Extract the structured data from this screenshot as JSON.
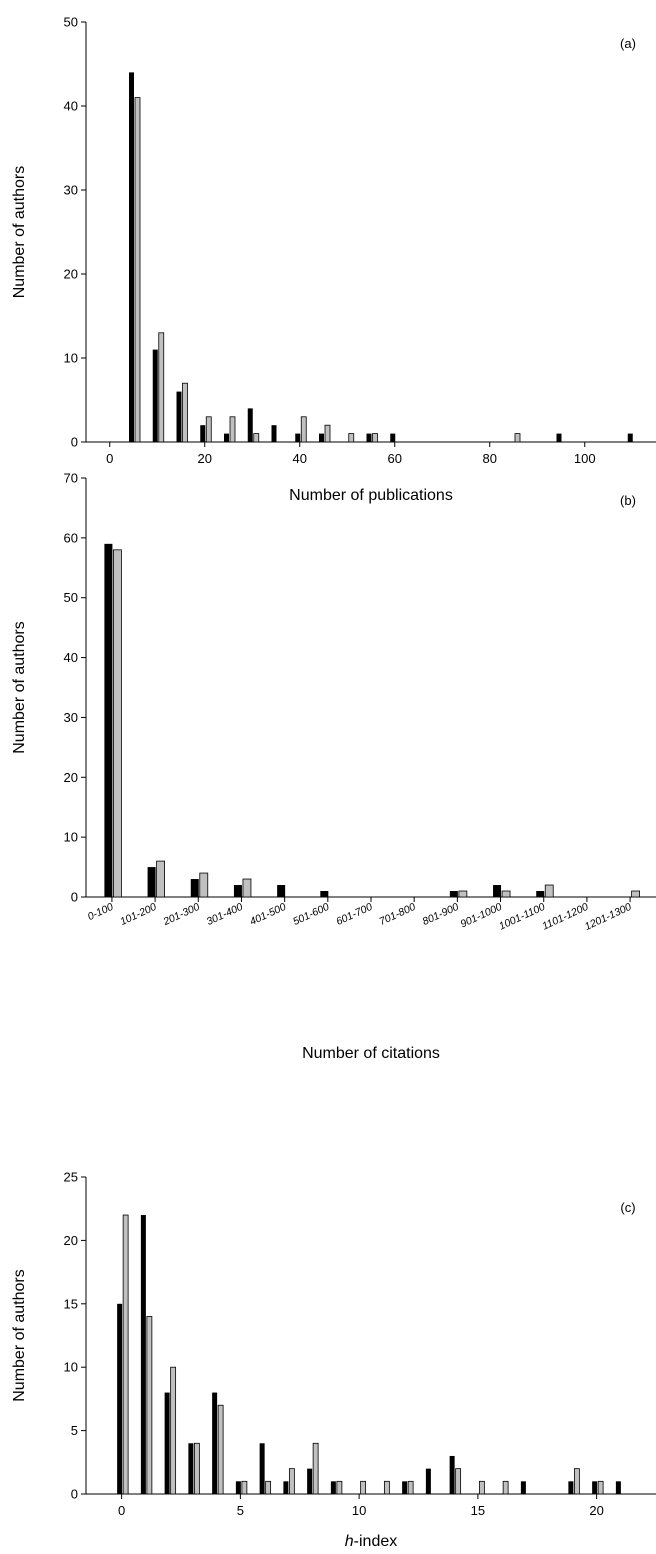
{
  "chart_data": [
    {
      "type": "bar",
      "panel_label": "(a)",
      "xlabel": "Number of publications",
      "ylabel": "Number of authors",
      "xlim": [
        -5,
        115
      ],
      "ylim": [
        0,
        50
      ],
      "xticks": [
        0,
        20,
        40,
        60,
        80,
        100
      ],
      "yticks": [
        0,
        10,
        20,
        30,
        40,
        50
      ],
      "grid": false,
      "x": [
        5,
        10,
        15,
        20,
        25,
        30,
        35,
        40,
        45,
        50,
        55,
        60,
        85,
        95,
        110
      ],
      "series": [
        {
          "color": "#000000",
          "values": [
            44,
            11,
            6,
            2,
            1,
            4,
            2,
            1,
            1,
            0,
            1,
            1,
            0,
            1,
            1
          ]
        },
        {
          "color": "#c0c0c0",
          "values": [
            41,
            13,
            7,
            3,
            3,
            1,
            0,
            3,
            2,
            1,
            1,
            0,
            1,
            0,
            0
          ]
        }
      ]
    },
    {
      "type": "bar",
      "panel_label": "(b)",
      "xlabel": "Number of citations",
      "ylabel": "Number of authors",
      "ylim": [
        0,
        70
      ],
      "yticks": [
        0,
        10,
        20,
        30,
        40,
        50,
        60,
        70
      ],
      "grid": false,
      "categories": [
        "0-100",
        "101-200",
        "201-300",
        "301-400",
        "401-500",
        "501-600",
        "601-700",
        "701-800",
        "801-900",
        "901-1000",
        "1001-1100",
        "1101-1200",
        "1201-1300"
      ],
      "series": [
        {
          "color": "#000000",
          "values": [
            59,
            5,
            3,
            2,
            2,
            1,
            0,
            0,
            1,
            2,
            1,
            0,
            0
          ]
        },
        {
          "color": "#c0c0c0",
          "values": [
            58,
            6,
            4,
            3,
            0,
            0,
            0,
            0,
            1,
            1,
            2,
            0,
            1
          ]
        }
      ]
    },
    {
      "type": "bar",
      "panel_label": "(c)",
      "xlabel_italic": "h",
      "xlabel": "-index",
      "ylabel": "Number of authors",
      "xlim": [
        -1.5,
        22.5
      ],
      "ylim": [
        0,
        25
      ],
      "xticks": [
        0,
        5,
        10,
        15,
        20
      ],
      "yticks": [
        0,
        5,
        10,
        15,
        20,
        25
      ],
      "grid": false,
      "x": [
        0,
        1,
        2,
        3,
        4,
        5,
        6,
        7,
        8,
        9,
        10,
        11,
        12,
        13,
        14,
        15,
        16,
        17,
        18,
        19,
        20,
        21
      ],
      "series": [
        {
          "color": "#000000",
          "values": [
            15,
            22,
            8,
            4,
            8,
            1,
            4,
            1,
            2,
            1,
            0,
            0,
            1,
            2,
            3,
            0,
            0,
            1,
            0,
            1,
            1,
            1
          ]
        },
        {
          "color": "#c0c0c0",
          "values": [
            22,
            14,
            10,
            4,
            7,
            1,
            1,
            2,
            4,
            1,
            1,
            1,
            1,
            0,
            2,
            1,
            1,
            0,
            0,
            2,
            1,
            0
          ]
        }
      ]
    }
  ]
}
